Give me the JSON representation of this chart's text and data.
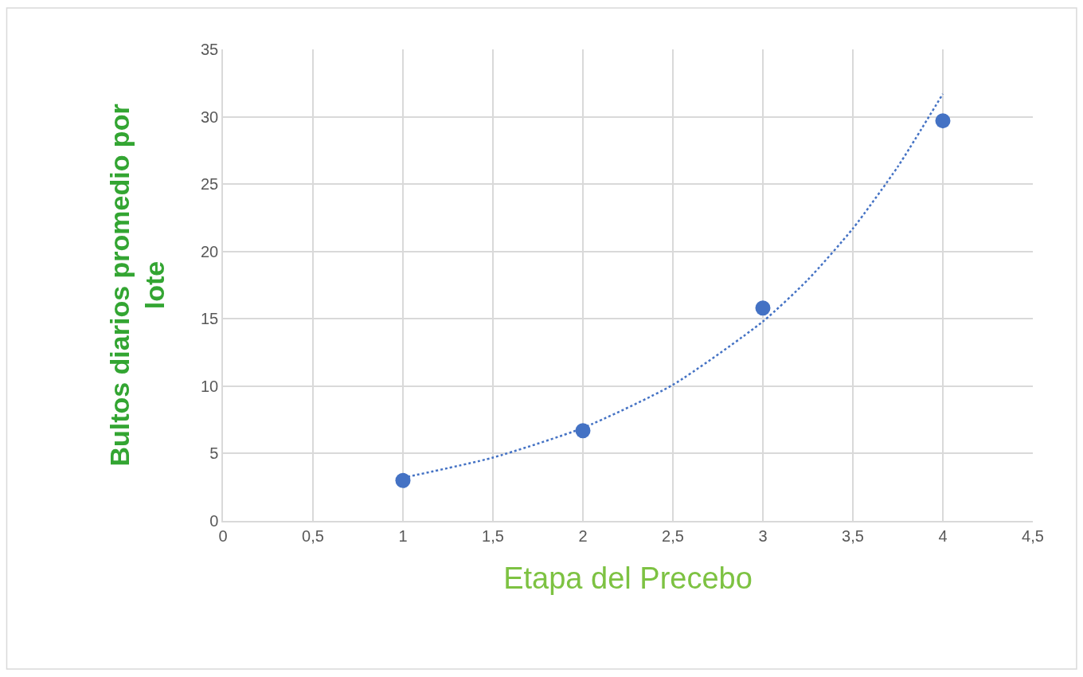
{
  "chart_data": {
    "type": "scatter",
    "xlabel": "Etapa del Precebo",
    "ylabel": "Bultos diarios promedio por lote",
    "x": [
      1,
      2,
      3,
      4
    ],
    "series": [
      {
        "color": "#4472c4",
        "values": [
          3.0,
          6.7,
          15.8,
          29.7
        ],
        "marker": "circle"
      },
      {
        "type": "line",
        "color": "#4472c4",
        "x": [
          1,
          1.5,
          2,
          2.5,
          3,
          3.25,
          3.5,
          3.75,
          4
        ],
        "values": [
          3.2,
          4.7,
          6.9,
          10.1,
          14.8,
          17.9,
          21.7,
          26.3,
          31.7
        ],
        "line_style": "dotted"
      }
    ],
    "xlim": [
      0,
      4.5
    ],
    "xticks": [
      0,
      {
        "value": 0.5,
        "label": "0,5"
      },
      1,
      {
        "value": 1.5,
        "label": "1,5"
      },
      2,
      {
        "value": 2.5,
        "label": "2,5"
      },
      3,
      {
        "value": 3.5,
        "label": "3,5"
      },
      4,
      {
        "value": 4.5,
        "label": "4,5"
      }
    ],
    "ylim": [
      0,
      35
    ],
    "yticks": [
      0,
      5,
      10,
      15,
      20,
      25,
      30,
      35
    ],
    "grid": true
  }
}
